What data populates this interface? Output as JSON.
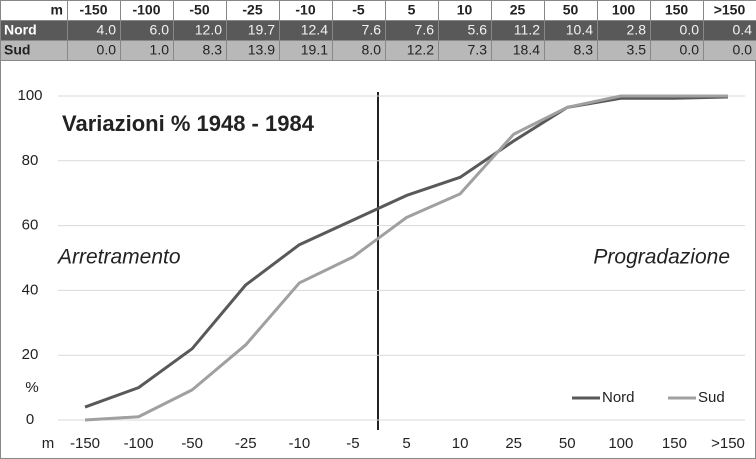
{
  "table": {
    "header": [
      "m",
      "-150",
      "-100",
      "-50",
      "-25",
      "-10",
      "-5",
      "5",
      "10",
      "25",
      "50",
      "100",
      "150",
      ">150"
    ],
    "rows": [
      [
        "Nord",
        "4.0",
        "6.0",
        "12.0",
        "19.7",
        "12.4",
        "7.6",
        "7.6",
        "5.6",
        "11.2",
        "10.4",
        "2.8",
        "0.0",
        "0.4"
      ],
      [
        "Sud",
        "0.0",
        "1.0",
        "8.3",
        "13.9",
        "19.1",
        "8.0",
        "12.2",
        "7.3",
        "18.4",
        "8.3",
        "3.5",
        "0.0",
        "0.0"
      ]
    ]
  },
  "chart_data": {
    "type": "line",
    "title": "Variazioni % 1948 - 1984",
    "x_label": "m",
    "y_label": "%",
    "annotations": [
      "Arretramento",
      "Progradazione"
    ],
    "categories": [
      "-150",
      "-100",
      "-50",
      "-25",
      "-10",
      "-5",
      "5",
      "10",
      "25",
      "50",
      "100",
      "150",
      ">150"
    ],
    "series": [
      {
        "name": "Nord",
        "color": "#595959",
        "values": [
          4.0,
          10.0,
          22.0,
          41.7,
          54.1,
          61.7,
          69.3,
          74.9,
          86.1,
          96.5,
          99.3,
          99.3,
          99.7
        ]
      },
      {
        "name": "Sud",
        "color": "#a0a0a0",
        "values": [
          0.0,
          1.0,
          9.3,
          23.2,
          42.3,
          50.3,
          62.5,
          69.8,
          88.2,
          96.5,
          100,
          100,
          100
        ]
      }
    ],
    "ylim": [
      0,
      100
    ],
    "yticks": [
      0,
      20,
      40,
      60,
      80,
      100
    ],
    "grid": true,
    "legend": "bottom-right"
  }
}
